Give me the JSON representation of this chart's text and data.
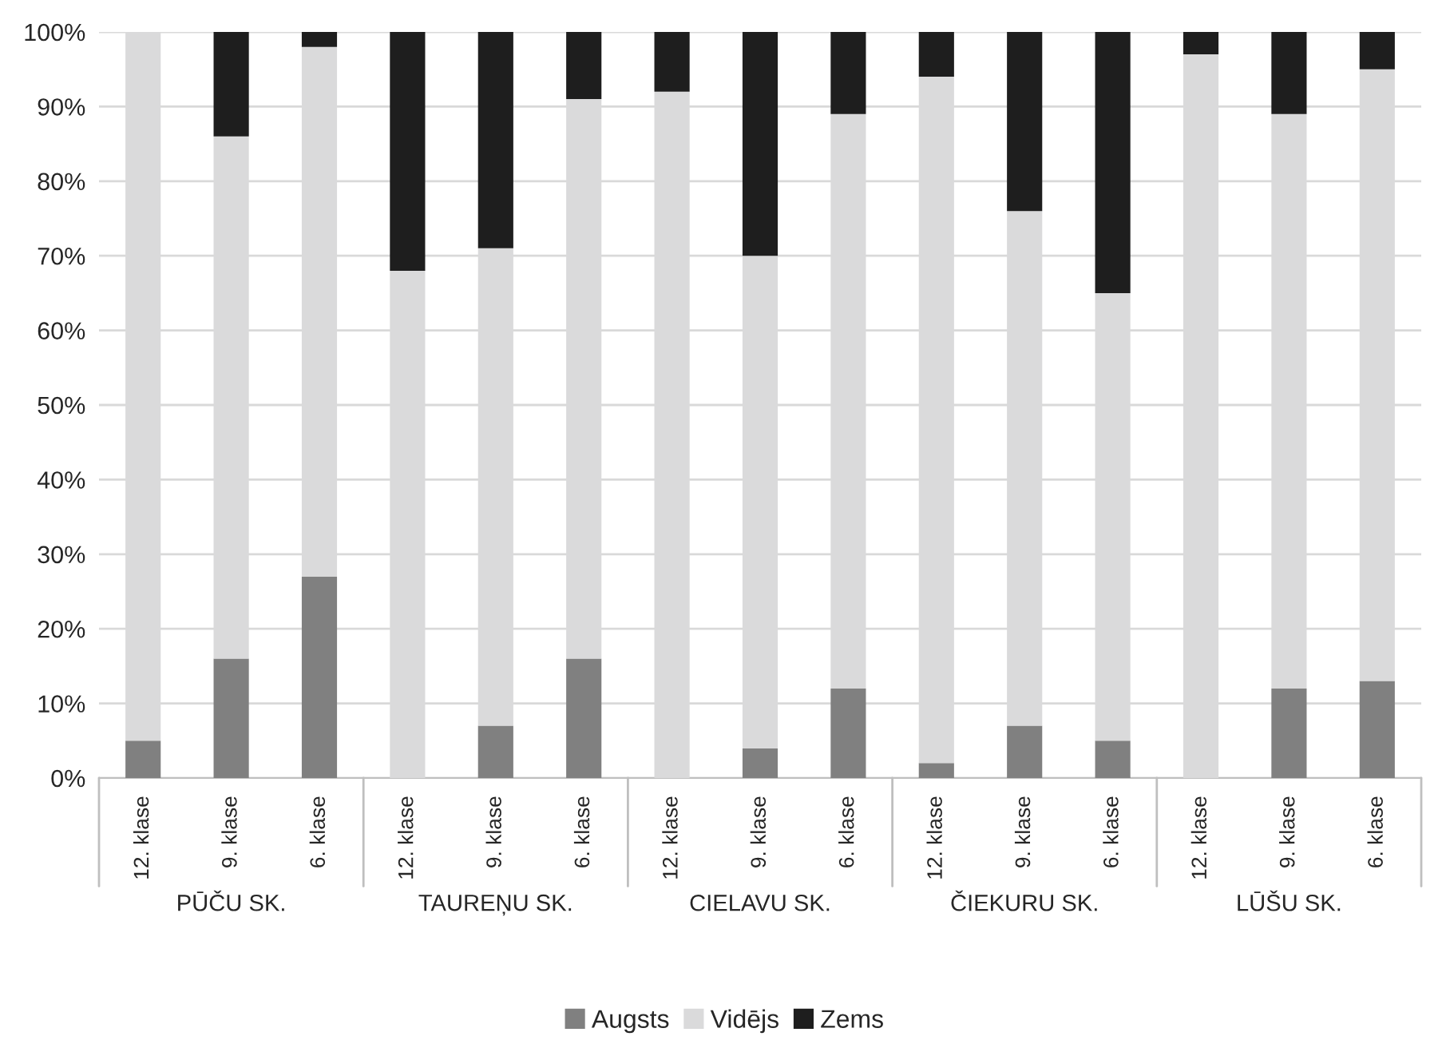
{
  "chart_data": {
    "type": "bar",
    "stacked": true,
    "categories": [
      "12. klase",
      "9. klase",
      "6. klase",
      "12. klase",
      "9. klase",
      "6. klase",
      "12. klase",
      "9. klase",
      "6. klase",
      "12. klase",
      "9. klase",
      "6. klase",
      "12. klase",
      "9. klase",
      "6. klase"
    ],
    "annotations": [
      "PŪČU SK.",
      "TAUREŅU SK.",
      "CIELAVU SK.",
      "ČIEKURU SK.",
      "LŪŠU SK."
    ],
    "series": [
      {
        "name": "Augsts",
        "color": "#808080",
        "values": [
          5,
          16,
          27,
          0,
          7,
          16,
          0,
          4,
          12,
          2,
          7,
          5,
          0,
          12,
          13
        ]
      },
      {
        "name": "Vidējs",
        "color": "#dadadb",
        "values": [
          95,
          70,
          71,
          68,
          64,
          75,
          92,
          66,
          77,
          92,
          69,
          60,
          97,
          77,
          82
        ]
      },
      {
        "name": "Zems",
        "color": "#1e1e1e",
        "values": [
          0,
          14,
          2,
          32,
          29,
          9,
          8,
          30,
          11,
          6,
          24,
          35,
          3,
          11,
          5
        ]
      }
    ],
    "ylim": [
      0,
      100
    ],
    "yticks": [
      {
        "value": 0,
        "label": "0%"
      },
      {
        "value": 10,
        "label": "10%"
      },
      {
        "value": 20,
        "label": "20%"
      },
      {
        "value": 30,
        "label": "30%"
      },
      {
        "value": 40,
        "label": "40%"
      },
      {
        "value": 50,
        "label": "50%"
      },
      {
        "value": 60,
        "label": "60%"
      },
      {
        "value": 70,
        "label": "70%"
      },
      {
        "value": 80,
        "label": "80%"
      },
      {
        "value": 90,
        "label": "90%"
      },
      {
        "value": 100,
        "label": "100%"
      }
    ],
    "grid": "y",
    "legend": "bottom"
  }
}
